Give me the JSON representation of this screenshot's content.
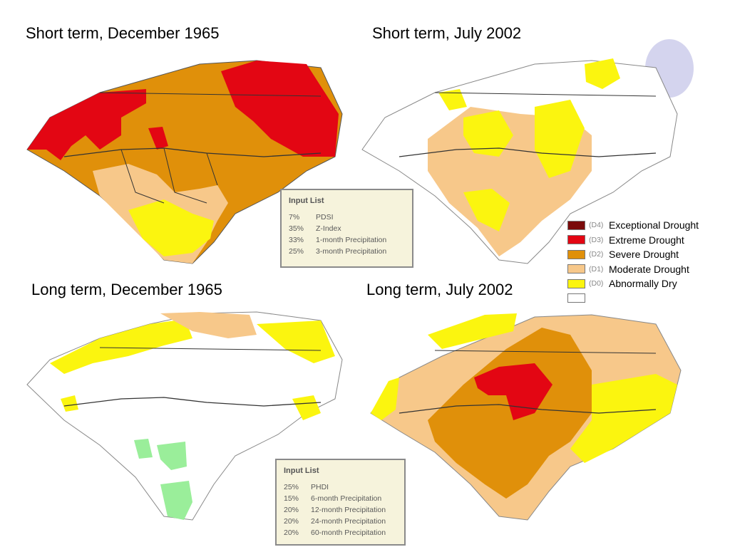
{
  "titles": {
    "short_1965": "Short term, December 1965",
    "short_2002": "Short term, July 2002",
    "long_1965": "Long term, December 1965",
    "long_2002": "Long term, July 2002"
  },
  "colors": {
    "d4": "#7a0a0a",
    "d3": "#e30613",
    "d2": "#e0900a",
    "d1": "#f7c88a",
    "d0": "#fbf50f",
    "none": "#ffffff",
    "wet": "#9aee9a",
    "outline": "#333333"
  },
  "legend": [
    {
      "code": "(D4)",
      "label": "Exceptional Drought",
      "color": "#7a0a0a"
    },
    {
      "code": "(D3)",
      "label": "Extreme Drought",
      "color": "#e30613"
    },
    {
      "code": "(D2)",
      "label": "Severe Drought",
      "color": "#e0900a"
    },
    {
      "code": "(D1)",
      "label": "Moderate Drought",
      "color": "#f7c88a"
    },
    {
      "code": "(D0)",
      "label": "Abnormally Dry",
      "color": "#fbf50f"
    },
    {
      "code": "",
      "label": "",
      "color": "#ffffff"
    }
  ],
  "input_list_short": {
    "title": "Input List",
    "rows": [
      {
        "pct": "7%",
        "name": "PDSI"
      },
      {
        "pct": "35%",
        "name": "Z-Index"
      },
      {
        "pct": "33%",
        "name": "1-month Precipitation"
      },
      {
        "pct": "25%",
        "name": "3-month Precipitation"
      }
    ]
  },
  "input_list_long": {
    "title": "Input List",
    "rows": [
      {
        "pct": "25%",
        "name": "PHDI"
      },
      {
        "pct": "15%",
        "name": "6-month Precipitation"
      },
      {
        "pct": "20%",
        "name": "12-month Precipitation"
      },
      {
        "pct": "20%",
        "name": "24-month Precipitation"
      },
      {
        "pct": "20%",
        "name": "60-month Precipitation"
      }
    ]
  }
}
